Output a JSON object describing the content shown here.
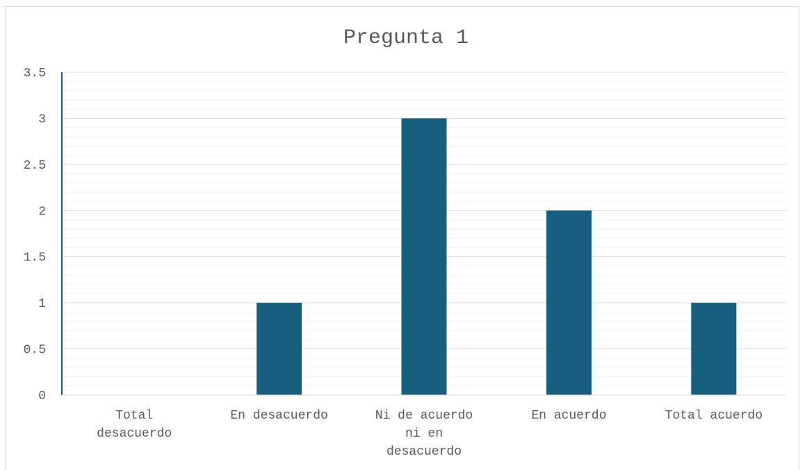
{
  "chart_data": {
    "type": "bar",
    "title": "Pregunta 1",
    "categories": [
      [
        "Total",
        "desacuerdo"
      ],
      [
        "En desacuerdo"
      ],
      [
        "Ni de acuerdo",
        "ni en",
        "desacuerdo"
      ],
      [
        "En acuerdo"
      ],
      [
        "Total acuerdo"
      ]
    ],
    "values": [
      0,
      1,
      3,
      2,
      1
    ],
    "ylim": [
      0,
      3.5
    ],
    "yticks": [
      "0",
      "0.5",
      "1",
      "1.5",
      "2",
      "2.5",
      "3",
      "3.5"
    ],
    "grid": true,
    "bar_color": "#175e7f",
    "axis_color": "#175e7f",
    "gridline_color": "#d9d9d9",
    "minor_gridline_color": "#f0f0f0",
    "text_color": "#595959"
  }
}
